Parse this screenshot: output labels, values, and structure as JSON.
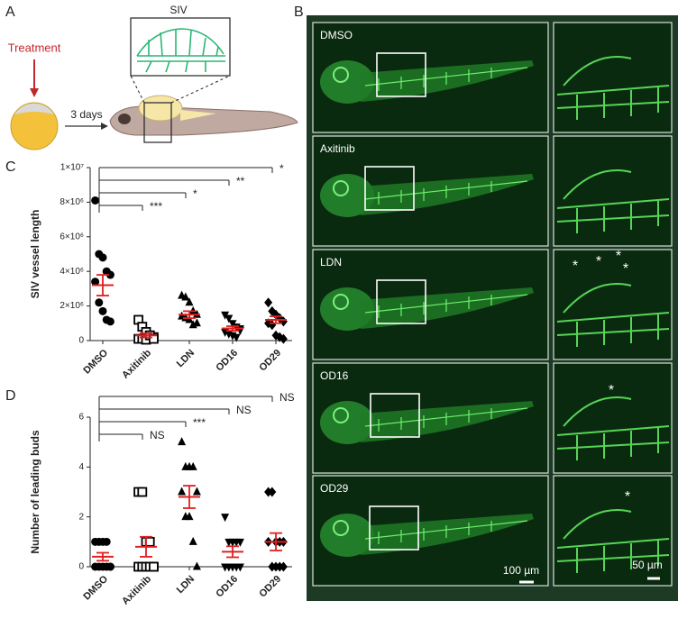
{
  "panels": {
    "a": "A",
    "b": "B",
    "c": "C",
    "d": "D"
  },
  "schematic": {
    "title": "SIV",
    "treatment": "Treatment",
    "duration": "3 days"
  },
  "images": {
    "labels": [
      "DMSO",
      "Axitinib",
      "LDN",
      "OD16",
      "OD29"
    ],
    "scale_bars": [
      "100 µm",
      "50 µm"
    ],
    "asterisk": "*"
  },
  "chart_data": [
    {
      "type": "scatter",
      "y_label": "SIV vessel length",
      "categories": [
        "DMSO",
        "Axitinib",
        "LDN",
        "OD16",
        "OD29"
      ],
      "markers": [
        "circle",
        "square-open",
        "triangle",
        "triangle-down",
        "diamond"
      ],
      "point_color": "#000000",
      "mean_color": "#e02020",
      "points": [
        [
          8100000,
          5000000,
          4800000,
          4000000,
          3800000,
          3400000,
          2200000,
          1700000,
          1200000,
          1100000
        ],
        [
          1200000,
          800000,
          500000,
          300000,
          200000,
          100000,
          100000,
          50000,
          300000,
          100000
        ],
        [
          2600000,
          2500000,
          2200000,
          1700000,
          1500000,
          1400000,
          1300000,
          1200000,
          900000,
          1000000
        ],
        [
          1500000,
          1300000,
          1000000,
          800000,
          600000,
          500000,
          400000,
          300000,
          200000,
          700000
        ],
        [
          2200000,
          1700000,
          1500000,
          1300000,
          1100000,
          1000000,
          900000,
          300000,
          200000,
          100000
        ]
      ],
      "means": [
        3200000,
        300000,
        1500000,
        700000,
        1200000
      ],
      "sems": [
        600000,
        120000,
        200000,
        130000,
        200000
      ],
      "significance": [
        "*",
        "**",
        "*",
        "***"
      ],
      "ylim": [
        0,
        10000000
      ],
      "yticks": [
        0,
        {
          "value": 2000000,
          "label": "2×10⁶"
        },
        {
          "value": 4000000,
          "label": "4×10⁶"
        },
        {
          "value": 6000000,
          "label": "6×10⁶"
        },
        {
          "value": 8000000,
          "label": "8×10⁶"
        },
        {
          "value": 10000000,
          "label": "1×10⁷"
        }
      ]
    },
    {
      "type": "scatter",
      "y_label": "Number of leading buds",
      "categories": [
        "DMSO",
        "Axitinib",
        "LDN",
        "OD16",
        "OD29"
      ],
      "markers": [
        "circle",
        "square-open",
        "triangle",
        "triangle-down",
        "diamond"
      ],
      "point_color": "#000000",
      "mean_color": "#e02020",
      "points": [
        [
          1,
          1,
          1,
          1,
          0,
          0,
          0,
          0,
          0,
          0
        ],
        [
          3,
          3,
          1,
          1,
          0,
          0,
          0,
          0,
          0,
          0
        ],
        [
          5,
          4,
          4,
          4,
          3,
          3,
          2,
          2,
          1,
          0
        ],
        [
          2,
          1,
          1,
          1,
          1,
          0,
          0,
          0,
          0,
          0
        ],
        [
          3,
          3,
          1,
          1,
          1,
          1,
          0,
          0,
          0,
          0
        ]
      ],
      "means": [
        0.4,
        0.8,
        2.8,
        0.6,
        1.0
      ],
      "sems": [
        0.16,
        0.4,
        0.45,
        0.22,
        0.35
      ],
      "significance": [
        "NS",
        "NS",
        "***",
        "NS"
      ],
      "ylim": [
        0,
        6
      ],
      "yticks": [
        0,
        2,
        4,
        6
      ]
    }
  ]
}
